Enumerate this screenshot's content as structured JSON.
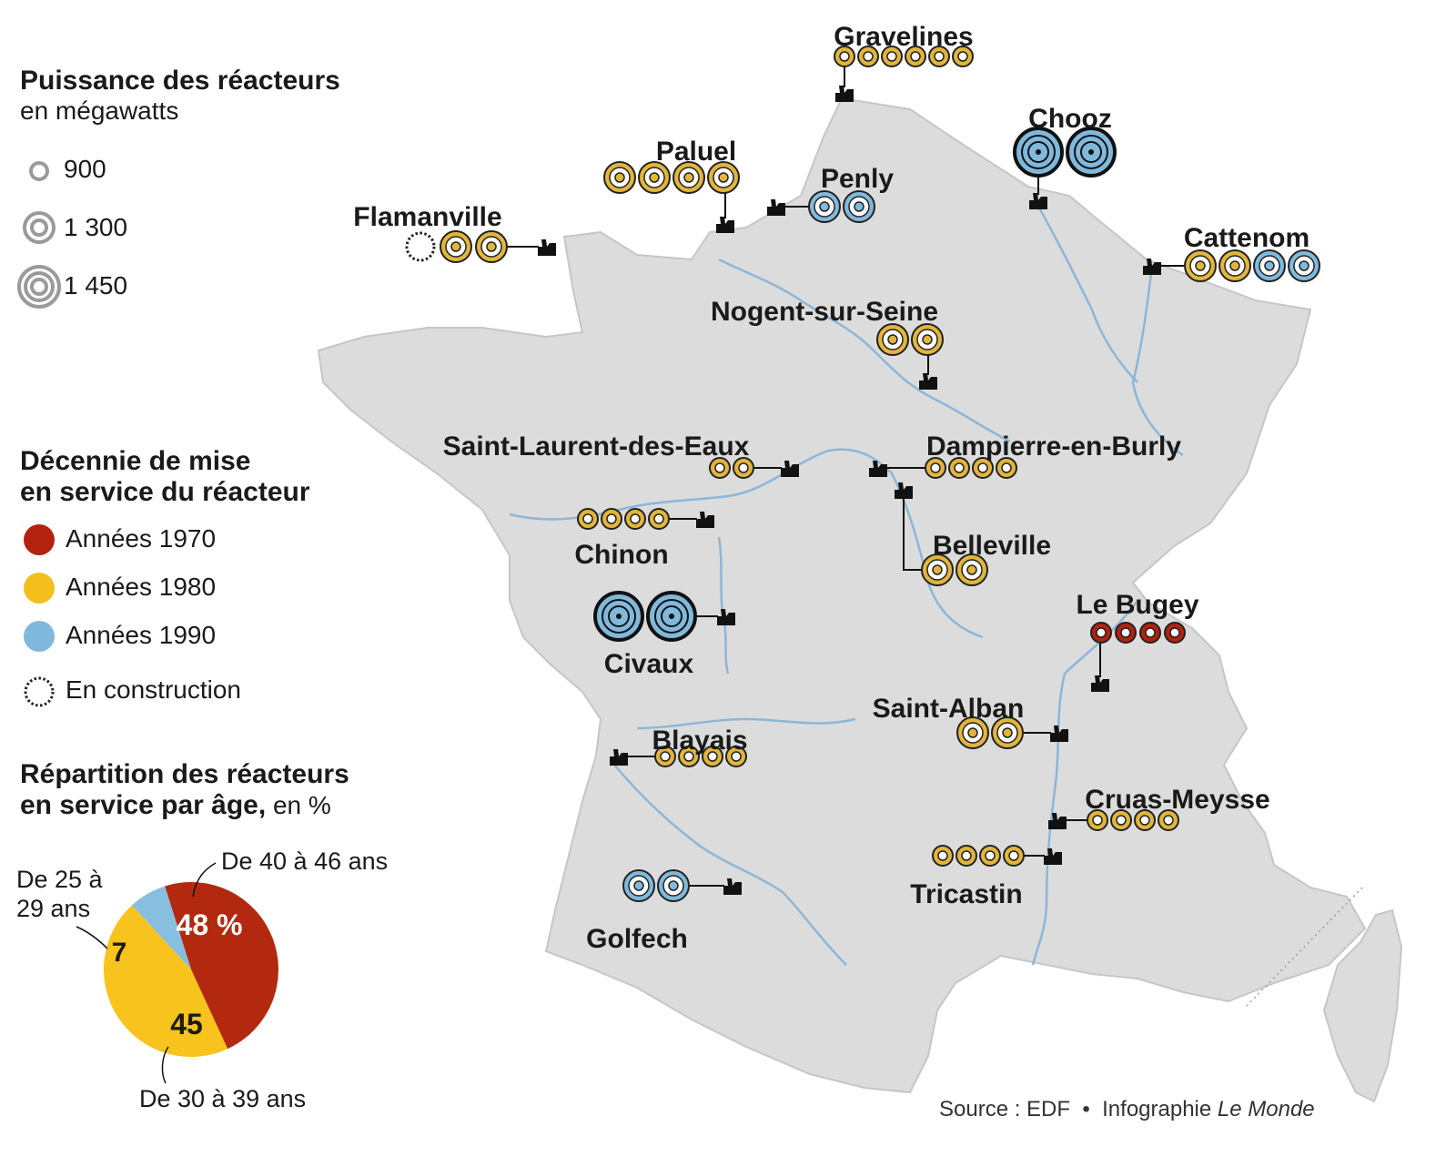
{
  "legend": {
    "power": {
      "title": "Puissance des réacteurs",
      "subtitle": "en mégawatts",
      "items": [
        {
          "label": "900",
          "rings": 1
        },
        {
          "label": "1 300",
          "rings": 2
        },
        {
          "label": "1 450",
          "rings": 3
        }
      ]
    },
    "decade": {
      "title_line1": "Décennie de mise",
      "title_line2": "en service du réacteur",
      "items": [
        {
          "label": "Années 1970",
          "color": "#b3210f"
        },
        {
          "label": "Années 1980",
          "color": "#f2bf1d"
        },
        {
          "label": "Années 1990",
          "color": "#80b9dc"
        },
        {
          "label": "En construction",
          "color": "#ffffff"
        }
      ]
    },
    "age": {
      "title_line1": "Répartition des réacteurs",
      "title_line2_bold": "en service par âge,",
      "title_line2_rest": " en %"
    }
  },
  "chart_data": {
    "type": "pie",
    "slices": [
      {
        "label": "De 40 à 46 ans",
        "value": 48,
        "display": "48 %",
        "color": "#b3290f"
      },
      {
        "label": "De 30 à 39 ans",
        "value": 45,
        "display": "45",
        "color": "#f7c31c"
      },
      {
        "label": "De 25 à 29 ans",
        "value": 7,
        "display": "7",
        "color": "#88bee0"
      }
    ]
  },
  "sites": [
    {
      "name": "Gravelines",
      "reactors": [
        "80-900",
        "80-900",
        "80-900",
        "80-900",
        "80-900",
        "80-900"
      ]
    },
    {
      "name": "Paluel",
      "reactors": [
        "80-1300",
        "80-1300",
        "80-1300",
        "80-1300"
      ]
    },
    {
      "name": "Penly",
      "reactors": [
        "90-1300",
        "90-1300"
      ]
    },
    {
      "name": "Chooz",
      "reactors": [
        "90-1450",
        "90-1450"
      ]
    },
    {
      "name": "Flamanville",
      "reactors": [
        "con",
        "80-1300",
        "80-1300"
      ]
    },
    {
      "name": "Cattenom",
      "reactors": [
        "80-1300",
        "80-1300",
        "90-1300",
        "90-1300"
      ]
    },
    {
      "name": "Nogent-sur-Seine",
      "reactors": [
        "80-1300",
        "80-1300"
      ]
    },
    {
      "name": "Saint-Laurent-des-Eaux",
      "reactors": [
        "80-900",
        "80-900"
      ]
    },
    {
      "name": "Dampierre-en-Burly",
      "reactors": [
        "80-900",
        "80-900",
        "80-900",
        "80-900"
      ]
    },
    {
      "name": "Chinon",
      "reactors": [
        "80-900",
        "80-900",
        "80-900",
        "80-900"
      ]
    },
    {
      "name": "Belleville",
      "reactors": [
        "80-1300",
        "80-1300"
      ]
    },
    {
      "name": "Le Bugey",
      "reactors": [
        "70-900",
        "70-900",
        "70-900",
        "70-900"
      ]
    },
    {
      "name": "Civaux",
      "reactors": [
        "90-1450",
        "90-1450"
      ]
    },
    {
      "name": "Saint-Alban",
      "reactors": [
        "80-1300",
        "80-1300"
      ]
    },
    {
      "name": "Blayais",
      "reactors": [
        "80-900",
        "80-900",
        "80-900",
        "80-900"
      ]
    },
    {
      "name": "Cruas-Meysse",
      "reactors": [
        "80-900",
        "80-900",
        "80-900",
        "80-900"
      ]
    },
    {
      "name": "Tricastin",
      "reactors": [
        "80-900",
        "80-900",
        "80-900",
        "80-900"
      ]
    },
    {
      "name": "Golfech",
      "reactors": [
        "90-1300",
        "90-1300"
      ]
    }
  ],
  "source": {
    "text": "Source : EDF",
    "separator": "•",
    "credit_prefix": "Infographie ",
    "credit_italic": "Le Monde"
  },
  "colors": {
    "land": "#dcdcdc",
    "river": "#8cb6d8",
    "reactor_1970": "#b3210f",
    "reactor_1980": "#e2b53c",
    "reactor_1990": "#80b9dc"
  }
}
